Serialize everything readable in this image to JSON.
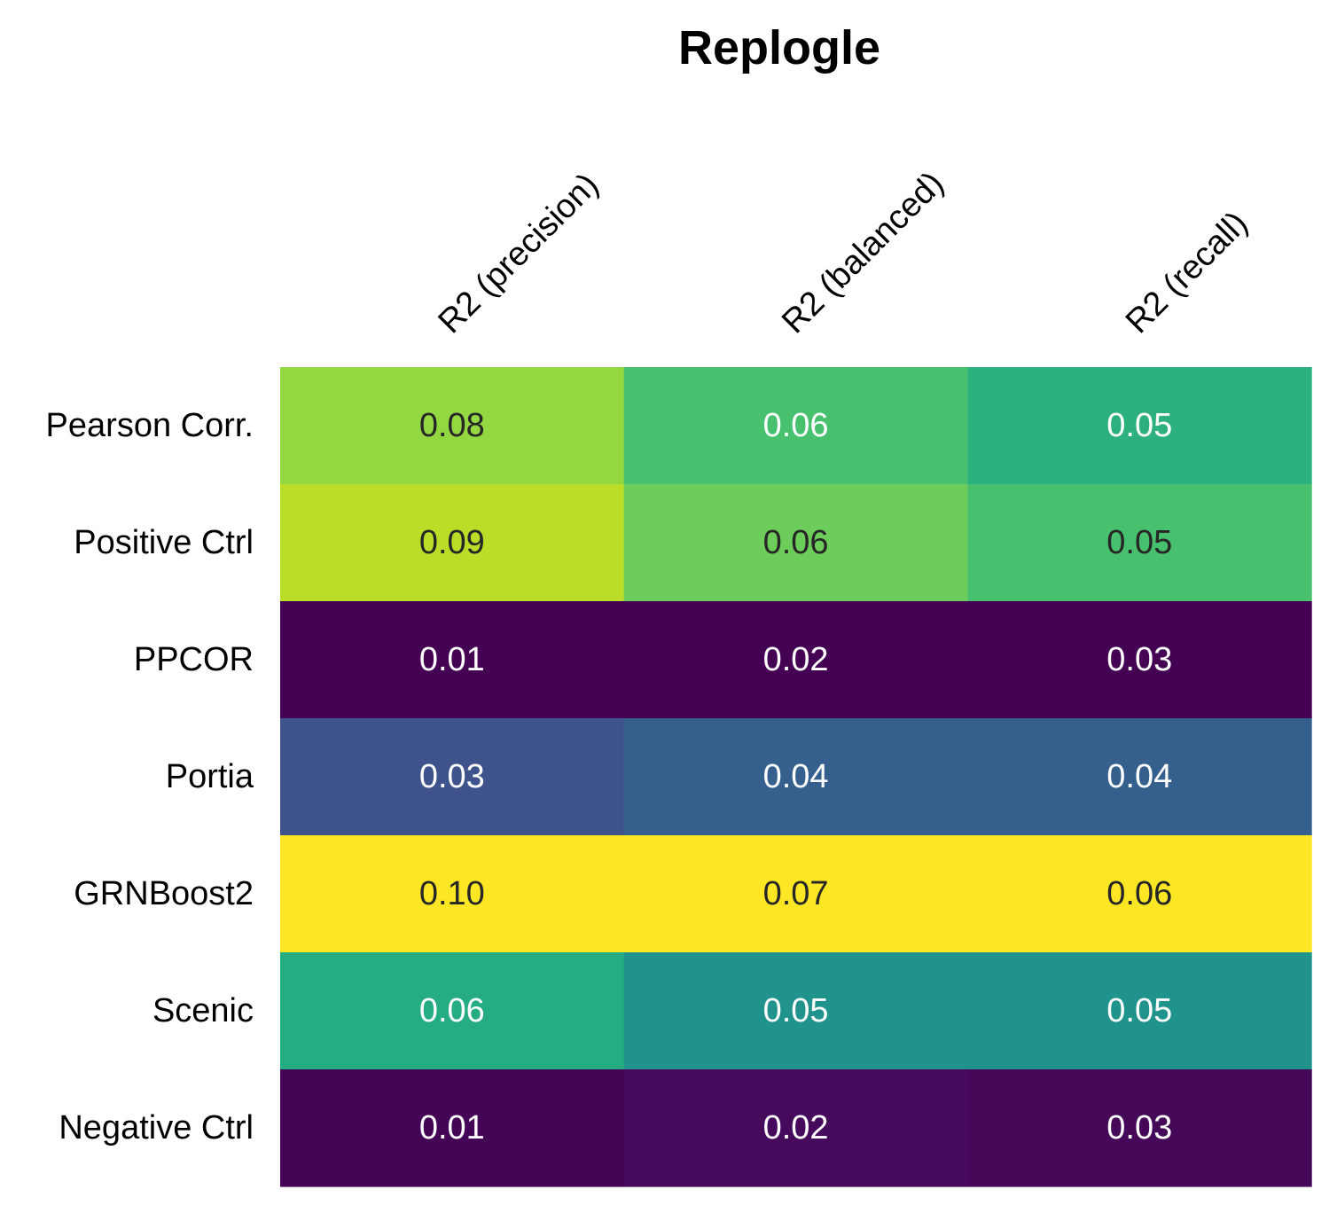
{
  "chart_data": {
    "type": "heatmap",
    "title": "Replogle",
    "columns": [
      "R2 (precision)",
      "R2 (balanced)",
      "R2 (recall)"
    ],
    "rows": [
      "Pearson Corr.",
      "Positive Ctrl",
      "PPCOR",
      "Portia",
      "GRNBoost2",
      "Scenic",
      "Negative Ctrl"
    ],
    "values": [
      [
        0.08,
        0.06,
        0.05
      ],
      [
        0.09,
        0.06,
        0.05
      ],
      [
        0.01,
        0.02,
        0.03
      ],
      [
        0.03,
        0.04,
        0.04
      ],
      [
        0.1,
        0.07,
        0.06
      ],
      [
        0.06,
        0.05,
        0.05
      ],
      [
        0.01,
        0.02,
        0.03
      ]
    ],
    "cell_labels": [
      [
        "0.08",
        "0.06",
        "0.05"
      ],
      [
        "0.09",
        "0.06",
        "0.05"
      ],
      [
        "0.01",
        "0.02",
        "0.03"
      ],
      [
        "0.03",
        "0.04",
        "0.04"
      ],
      [
        "0.10",
        "0.07",
        "0.06"
      ],
      [
        "0.06",
        "0.05",
        "0.05"
      ],
      [
        "0.01",
        "0.02",
        "0.03"
      ]
    ],
    "cell_colors": [
      [
        "#93d741",
        "#48c16e",
        "#2cb17e"
      ],
      [
        "#bade28",
        "#6ccd5a",
        "#48c16e"
      ],
      [
        "#440154",
        "#440154",
        "#440154"
      ],
      [
        "#3e538b",
        "#35608d",
        "#35608d"
      ],
      [
        "#fde725",
        "#fde725",
        "#fde725"
      ],
      [
        "#25ac82",
        "#20938c",
        "#20938c"
      ],
      [
        "#450557",
        "#460a5d",
        "#450757"
      ]
    ],
    "text_colors": [
      [
        "#262626",
        "#ffffff",
        "#ffffff"
      ],
      [
        "#262626",
        "#262626",
        "#262626"
      ],
      [
        "#ffffff",
        "#ffffff",
        "#ffffff"
      ],
      [
        "#ffffff",
        "#ffffff",
        "#ffffff"
      ],
      [
        "#262626",
        "#262626",
        "#262626"
      ],
      [
        "#ffffff",
        "#ffffff",
        "#ffffff"
      ],
      [
        "#ffffff",
        "#ffffff",
        "#ffffff"
      ]
    ],
    "colormap": "viridis",
    "per_row_normalized": true,
    "legend": "none",
    "grid": false,
    "column_label_rotation_deg": -45,
    "column_label_position": "top"
  }
}
